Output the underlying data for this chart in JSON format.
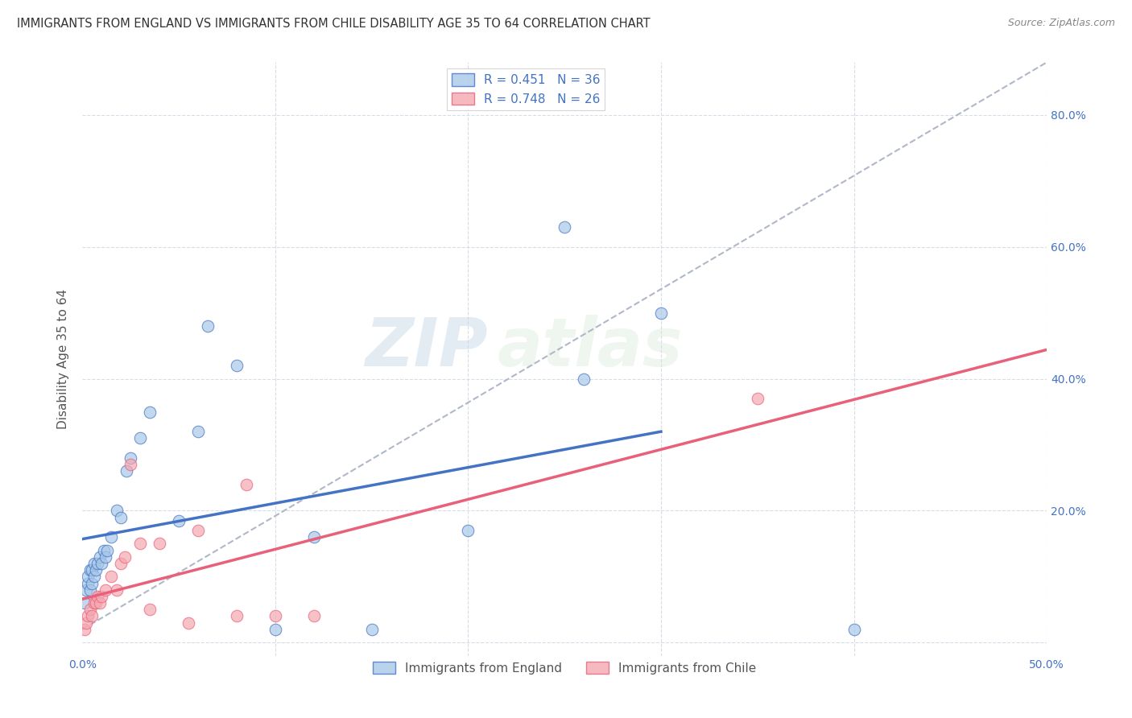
{
  "title": "IMMIGRANTS FROM ENGLAND VS IMMIGRANTS FROM CHILE DISABILITY AGE 35 TO 64 CORRELATION CHART",
  "source": "Source: ZipAtlas.com",
  "ylabel": "Disability Age 35 to 64",
  "xlim": [
    0.0,
    0.5
  ],
  "ylim": [
    -0.02,
    0.88
  ],
  "england_color": "#a8c8e8",
  "chile_color": "#f4a8b0",
  "england_line_color": "#4472c4",
  "chile_line_color": "#e8607a",
  "dashed_line_color": "#b0b8c8",
  "R_england": 0.451,
  "N_england": 36,
  "R_chile": 0.748,
  "N_chile": 26,
  "watermark_zip": "ZIP",
  "watermark_atlas": "atlas",
  "england_x": [
    0.001,
    0.002,
    0.003,
    0.003,
    0.004,
    0.004,
    0.005,
    0.005,
    0.006,
    0.006,
    0.007,
    0.008,
    0.009,
    0.01,
    0.011,
    0.012,
    0.013,
    0.015,
    0.018,
    0.02,
    0.023,
    0.025,
    0.03,
    0.035,
    0.05,
    0.06,
    0.065,
    0.08,
    0.1,
    0.12,
    0.15,
    0.2,
    0.25,
    0.26,
    0.3,
    0.4
  ],
  "england_y": [
    0.06,
    0.08,
    0.09,
    0.1,
    0.08,
    0.11,
    0.09,
    0.11,
    0.1,
    0.12,
    0.11,
    0.12,
    0.13,
    0.12,
    0.14,
    0.13,
    0.14,
    0.16,
    0.2,
    0.19,
    0.26,
    0.28,
    0.31,
    0.35,
    0.185,
    0.32,
    0.48,
    0.42,
    0.02,
    0.16,
    0.02,
    0.17,
    0.63,
    0.4,
    0.5,
    0.02
  ],
  "chile_x": [
    0.001,
    0.002,
    0.003,
    0.004,
    0.005,
    0.006,
    0.007,
    0.008,
    0.009,
    0.01,
    0.012,
    0.015,
    0.018,
    0.02,
    0.022,
    0.025,
    0.03,
    0.035,
    0.04,
    0.055,
    0.06,
    0.08,
    0.085,
    0.1,
    0.12,
    0.35
  ],
  "chile_y": [
    0.02,
    0.03,
    0.04,
    0.05,
    0.04,
    0.06,
    0.06,
    0.07,
    0.06,
    0.07,
    0.08,
    0.1,
    0.08,
    0.12,
    0.13,
    0.27,
    0.15,
    0.05,
    0.15,
    0.03,
    0.17,
    0.04,
    0.24,
    0.04,
    0.04,
    0.37
  ],
  "england_size": 110,
  "chile_size": 110,
  "background_color": "#ffffff",
  "grid_color": "#d8dce8"
}
